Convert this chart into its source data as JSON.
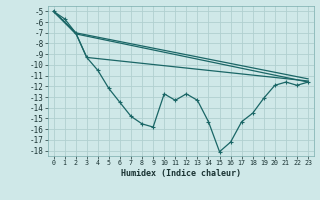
{
  "xlabel": "Humidex (Indice chaleur)",
  "background_color": "#cfe8e8",
  "grid_color": "#b0d0d0",
  "line_color": "#1a6666",
  "xlim": [
    -0.5,
    23.5
  ],
  "ylim": [
    -18.5,
    -4.5
  ],
  "xticks": [
    0,
    1,
    2,
    3,
    4,
    5,
    6,
    7,
    8,
    9,
    10,
    11,
    12,
    13,
    14,
    15,
    16,
    17,
    18,
    19,
    20,
    21,
    22,
    23
  ],
  "yticks": [
    -5,
    -6,
    -7,
    -8,
    -9,
    -10,
    -11,
    -12,
    -13,
    -14,
    -15,
    -16,
    -17,
    -18
  ],
  "line1_x": [
    0,
    1,
    2,
    3,
    4,
    5,
    6,
    7,
    8,
    9,
    10,
    11,
    12,
    13,
    14,
    15,
    16,
    17,
    18,
    19,
    20,
    21,
    22,
    23
  ],
  "line1_y": [
    -5,
    -5.7,
    -7,
    -9.3,
    -10.5,
    -12.2,
    -13.5,
    -14.8,
    -15.5,
    -15.8,
    -12.7,
    -13.3,
    -12.7,
    -13.3,
    -15.3,
    -18.1,
    -17.2,
    -15.3,
    -14.5,
    -13.1,
    -11.9,
    -11.6,
    -11.9,
    -11.6
  ],
  "line2_x": [
    0,
    2,
    3,
    23
  ],
  "line2_y": [
    -5,
    -7,
    -9.3,
    -11.5
  ],
  "line3_x": [
    0,
    2,
    23
  ],
  "line3_y": [
    -5,
    -7,
    -11.3
  ],
  "line4_x": [
    0,
    2,
    23
  ],
  "line4_y": [
    -5,
    -7.1,
    -11.6
  ]
}
